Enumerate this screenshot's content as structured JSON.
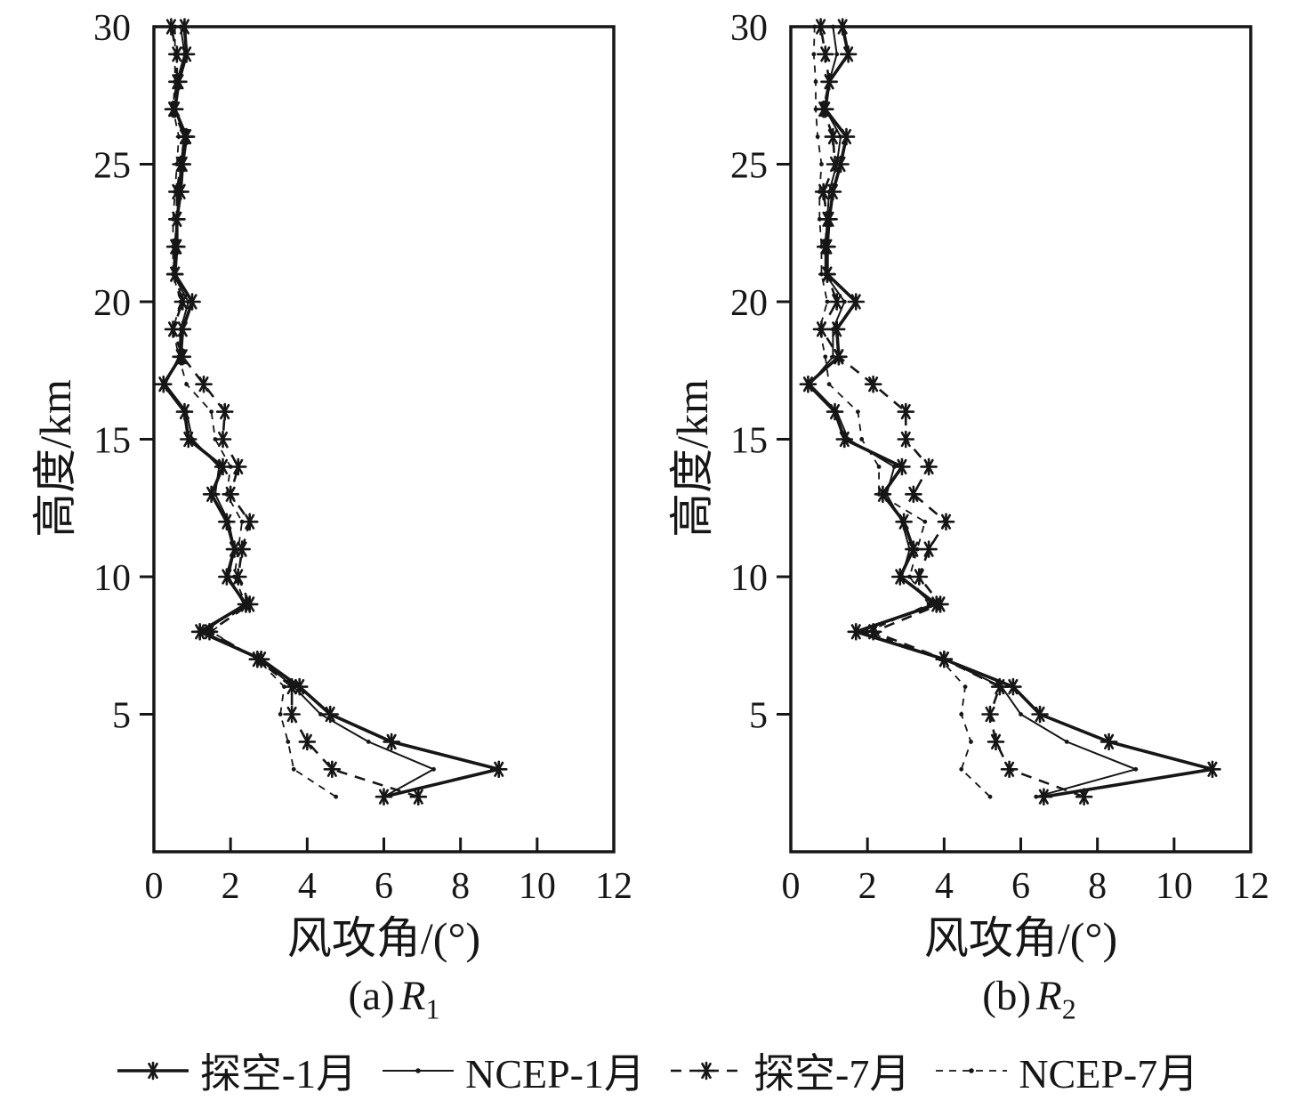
{
  "figure": {
    "ink": "#161616",
    "background": "#ffffff",
    "y_axis_label": "高度/km",
    "x_axis_label": "风攻角/(°)",
    "panels": [
      {
        "caption_prefix": "(a)",
        "caption_var": "R",
        "caption_sub": "1"
      },
      {
        "caption_prefix": "(b)",
        "caption_var": "R",
        "caption_sub": "2"
      }
    ],
    "legend": [
      {
        "label": "探空-1月",
        "line": "solid",
        "marker": "asterisk",
        "weight": 3.6
      },
      {
        "label": "NCEP-1月",
        "line": "solid",
        "marker": "dot",
        "weight": 2.0
      },
      {
        "label": "探空-7月",
        "line": "dashed",
        "marker": "asterisk",
        "weight": 2.6
      },
      {
        "label": "NCEP-7月",
        "line": "dashed",
        "marker": "dot",
        "weight": 1.8
      }
    ]
  },
  "chart_data": [
    {
      "type": "line",
      "title": "(a) R1",
      "xlabel": "风攻角/(°)",
      "ylabel": "高度/km",
      "xlim": [
        0,
        12
      ],
      "ylim": [
        0,
        30
      ],
      "x_ticks": [
        0,
        2,
        4,
        6,
        8,
        10,
        12
      ],
      "y_ticks": [
        5,
        10,
        15,
        20,
        25,
        30
      ],
      "grid": false,
      "altitudes_km": [
        2,
        3,
        4,
        5,
        6,
        7,
        8,
        9,
        10,
        11,
        12,
        13,
        14,
        15,
        16,
        17,
        18,
        19,
        20,
        21,
        22,
        23,
        24,
        25,
        26,
        27,
        28,
        29,
        30
      ],
      "series": [
        {
          "name": "探空-1月",
          "line": "solid",
          "marker": "asterisk",
          "values": [
            6.0,
            9.0,
            6.2,
            4.6,
            3.8,
            2.8,
            1.2,
            2.4,
            1.9,
            2.1,
            1.9,
            1.5,
            1.8,
            0.9,
            0.8,
            0.25,
            0.7,
            0.75,
            1.0,
            0.55,
            0.6,
            0.6,
            0.7,
            0.75,
            0.85,
            0.55,
            0.65,
            0.85,
            0.8
          ]
        },
        {
          "name": "NCEP-1月",
          "line": "solid",
          "marker": "dot",
          "values": [
            6.0,
            7.3,
            5.6,
            4.35,
            3.65,
            2.75,
            1.3,
            2.35,
            1.95,
            2.1,
            1.95,
            1.6,
            1.7,
            1.0,
            0.85,
            0.3,
            0.65,
            0.7,
            0.9,
            0.5,
            0.55,
            0.6,
            0.65,
            0.7,
            0.8,
            0.55,
            0.6,
            0.8,
            0.7
          ]
        },
        {
          "name": "探空-7月",
          "line": "dashed",
          "marker": "asterisk",
          "values": [
            6.9,
            4.65,
            4.0,
            3.6,
            3.6,
            2.7,
            1.45,
            2.5,
            2.2,
            2.3,
            2.5,
            2.0,
            2.2,
            1.8,
            1.85,
            1.3,
            0.75,
            0.5,
            0.75,
            0.55,
            0.55,
            0.6,
            0.6,
            0.7,
            0.8,
            0.5,
            0.6,
            0.6,
            0.45
          ]
        },
        {
          "name": "NCEP-7月",
          "line": "dashed",
          "marker": "dot",
          "values": [
            4.75,
            3.65,
            3.5,
            3.3,
            3.4,
            2.7,
            1.5,
            2.4,
            2.1,
            2.2,
            2.3,
            1.9,
            2.0,
            1.6,
            1.5,
            0.85,
            0.65,
            0.5,
            0.7,
            0.5,
            0.5,
            0.5,
            0.55,
            0.6,
            0.65,
            0.5,
            0.55,
            0.55,
            0.55
          ]
        }
      ]
    },
    {
      "type": "line",
      "title": "(b) R2",
      "xlabel": "风攻角/(°)",
      "ylabel": "高度/km",
      "xlim": [
        0,
        12
      ],
      "ylim": [
        0,
        30
      ],
      "x_ticks": [
        0,
        2,
        4,
        6,
        8,
        10,
        12
      ],
      "y_ticks": [
        5,
        10,
        15,
        20,
        25,
        30
      ],
      "grid": false,
      "altitudes_km": [
        2,
        3,
        4,
        5,
        6,
        7,
        8,
        9,
        10,
        11,
        12,
        13,
        14,
        15,
        16,
        17,
        18,
        19,
        20,
        21,
        22,
        23,
        24,
        25,
        26,
        27,
        28,
        29,
        30
      ],
      "series": [
        {
          "name": "探空-1月",
          "line": "solid",
          "marker": "asterisk",
          "values": [
            6.6,
            11.0,
            8.3,
            6.5,
            5.8,
            4.0,
            1.7,
            3.8,
            2.85,
            3.2,
            2.95,
            2.4,
            2.9,
            1.4,
            1.15,
            0.45,
            1.25,
            1.2,
            1.7,
            0.95,
            0.95,
            1.0,
            1.1,
            1.3,
            1.45,
            0.9,
            1.0,
            1.5,
            1.35
          ]
        },
        {
          "name": "NCEP-1月",
          "line": "solid",
          "marker": "dot",
          "values": [
            6.4,
            9.0,
            7.2,
            6.0,
            5.5,
            4.0,
            1.8,
            3.7,
            2.9,
            3.1,
            2.9,
            2.5,
            2.7,
            1.5,
            1.2,
            0.5,
            1.1,
            1.1,
            1.4,
            0.9,
            0.9,
            0.95,
            1.0,
            1.2,
            1.3,
            0.9,
            1.0,
            1.2,
            1.1
          ]
        },
        {
          "name": "探空-7月",
          "line": "dashed",
          "marker": "asterisk",
          "values": [
            7.65,
            5.7,
            5.35,
            5.2,
            5.45,
            4.0,
            2.15,
            3.9,
            3.35,
            3.6,
            4.05,
            3.2,
            3.6,
            3.0,
            3.0,
            2.15,
            1.25,
            0.8,
            1.2,
            0.95,
            0.9,
            0.95,
            0.85,
            1.15,
            1.1,
            0.85,
            1.0,
            0.9,
            0.78
          ]
        },
        {
          "name": "NCEP-7月",
          "line": "dashed",
          "marker": "dot",
          "values": [
            5.2,
            4.45,
            4.7,
            4.45,
            4.55,
            3.9,
            2.0,
            3.6,
            3.1,
            3.3,
            3.5,
            2.3,
            2.3,
            1.85,
            1.75,
            1.0,
            0.9,
            0.75,
            0.95,
            0.8,
            0.8,
            0.75,
            0.75,
            0.8,
            0.7,
            0.65,
            0.65,
            0.6,
            0.62
          ]
        }
      ]
    }
  ]
}
